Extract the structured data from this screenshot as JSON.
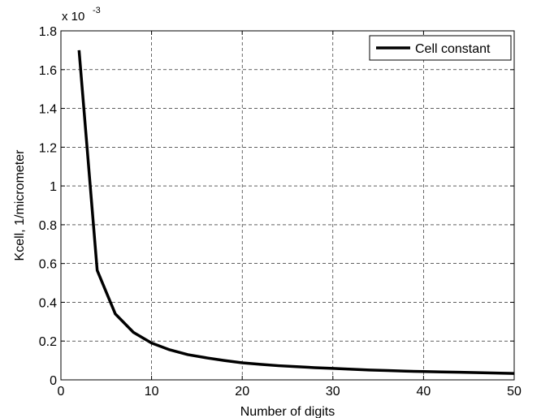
{
  "chart_data": {
    "type": "line",
    "title": "",
    "xlabel": "Number of digits",
    "ylabel": "Kcell, 1/micrometer",
    "y_multiplier_label": "x 10",
    "y_multiplier_exponent": "-3",
    "xlim": [
      0,
      50
    ],
    "ylim": [
      0,
      1.8
    ],
    "x_ticks": [
      0,
      10,
      20,
      30,
      40,
      50
    ],
    "x_tick_labels": [
      "0",
      "10",
      "20",
      "30",
      "40",
      "50"
    ],
    "y_ticks": [
      0,
      0.2,
      0.4,
      0.6,
      0.8,
      1.0,
      1.2,
      1.4,
      1.6,
      1.8
    ],
    "y_tick_labels": [
      "0",
      "0.2",
      "0.4",
      "0.6",
      "0.8",
      "1",
      "1.2",
      "1.4",
      "1.6",
      "1.8"
    ],
    "grid": true,
    "grid_style": "dashed",
    "legend_position": "top-right",
    "series": [
      {
        "name": "Cell constant",
        "color": "#000000",
        "x": [
          2,
          4,
          6,
          8,
          10,
          12,
          14,
          16,
          18,
          20,
          22,
          24,
          26,
          28,
          30,
          32,
          34,
          36,
          38,
          40,
          42,
          44,
          46,
          48,
          50
        ],
        "y": [
          1.7,
          0.565,
          0.34,
          0.245,
          0.19,
          0.155,
          0.13,
          0.114,
          0.1,
          0.088,
          0.08,
          0.073,
          0.068,
          0.063,
          0.059,
          0.055,
          0.051,
          0.048,
          0.045,
          0.043,
          0.041,
          0.039,
          0.037,
          0.035,
          0.033
        ]
      }
    ]
  }
}
